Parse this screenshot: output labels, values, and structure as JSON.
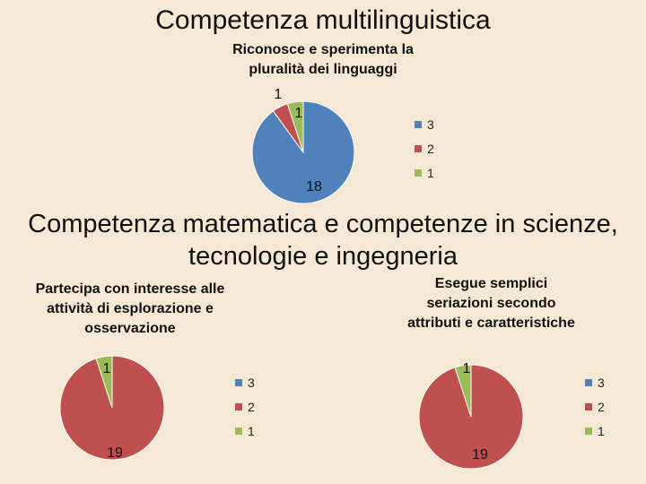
{
  "slide": {
    "title_top": "Competenza multilinguistica",
    "title_bottom_line1": "Competenza matematica e competenze in scienze,",
    "title_bottom_line2": "tecnologie e ingegneria"
  },
  "colors": {
    "3": "#4f81bd",
    "2": "#c0504d",
    "1": "#9bbb59"
  },
  "chart_data": [
    {
      "type": "pie",
      "title_lines": [
        "Riconosce e sperimenta la",
        "pluralità dei linguaggi"
      ],
      "categories": [
        "3",
        "2",
        "1"
      ],
      "values": [
        18,
        1,
        1
      ],
      "data_labels": [
        "18",
        "1",
        "1"
      ],
      "legend": [
        "3",
        "2",
        "1"
      ],
      "legend_position": "right"
    },
    {
      "type": "pie",
      "title_lines": [
        "Partecipa con interesse alle",
        "attività di esplorazione e",
        "osservazione"
      ],
      "categories": [
        "3",
        "2",
        "1"
      ],
      "values": [
        0,
        19,
        1
      ],
      "data_labels": [
        "",
        "19",
        "1"
      ],
      "legend": [
        "3",
        "2",
        "1"
      ],
      "legend_position": "right"
    },
    {
      "type": "pie",
      "title_lines": [
        "Esegue semplici",
        "seriazioni secondo",
        "attributi e caratteristiche"
      ],
      "categories": [
        "3",
        "2",
        "1"
      ],
      "values": [
        0,
        19,
        1
      ],
      "data_labels": [
        "",
        "19",
        "1"
      ],
      "legend": [
        "3",
        "2",
        "1"
      ],
      "legend_position": "right"
    }
  ]
}
